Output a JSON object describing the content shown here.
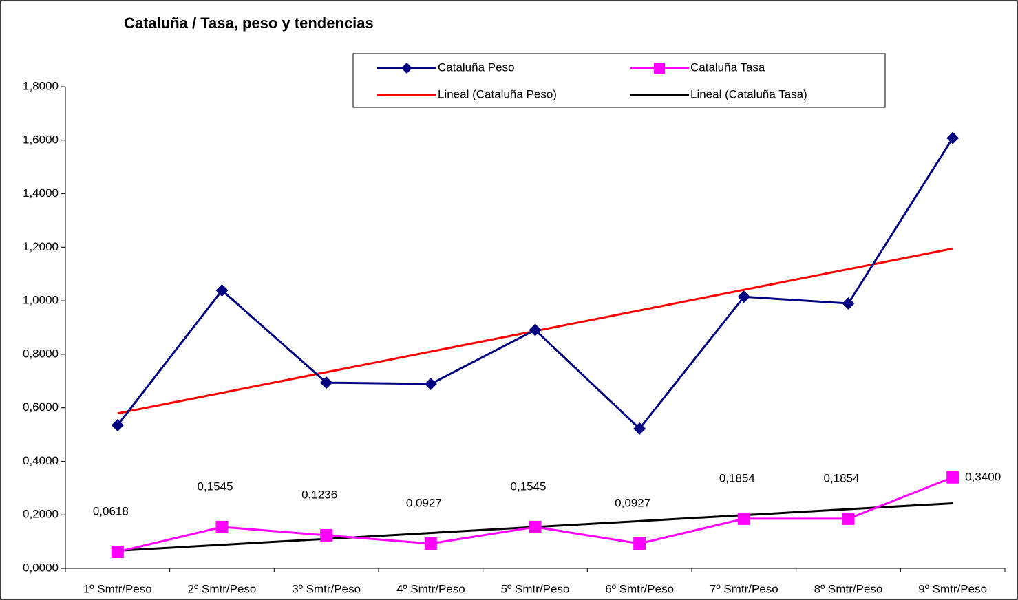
{
  "chart_data": {
    "type": "line",
    "title": "Cataluña  / Tasa, peso y tendencias",
    "categories": [
      "1º Smtr/Peso",
      "2º Smtr/Peso",
      "3º Smtr/Peso",
      "4º Smtr/Peso",
      "5º Smtr/Peso",
      "6º Smtr/Peso",
      "7º Smtr/Peso",
      "8º Smtr/Peso",
      "9º Smtr/Peso"
    ],
    "series": [
      {
        "name": "Cataluña Peso",
        "color": "#000080",
        "marker": "diamond",
        "values": [
          0.535,
          1.039,
          0.694,
          0.689,
          0.891,
          0.522,
          1.015,
          0.99,
          1.608
        ],
        "trendline": {
          "name": "Lineal (Cataluña Peso)",
          "color": "#ff0000"
        }
      },
      {
        "name": "Cataluña Tasa",
        "color": "#ff00ff",
        "marker": "square",
        "values": [
          0.0618,
          0.1545,
          0.1236,
          0.0927,
          0.1545,
          0.0927,
          0.1854,
          0.1854,
          0.34
        ],
        "value_labels": [
          "0,0618",
          "0,1545",
          "0,1236",
          "0,0927",
          "0,1545",
          "0,0927",
          "0,1854",
          "0,1854",
          "0,3400"
        ],
        "trendline": {
          "name": "Lineal (Cataluña Tasa)",
          "color": "#000000"
        }
      }
    ],
    "ylim": [
      0,
      1.8
    ],
    "yticks": [
      {
        "value": 0,
        "label": "0,0000"
      },
      {
        "value": 0.2,
        "label": "0,2000"
      },
      {
        "value": 0.4,
        "label": "0,4000"
      },
      {
        "value": 0.6,
        "label": "0,6000"
      },
      {
        "value": 0.8,
        "label": "0,8000"
      },
      {
        "value": 1,
        "label": "1,0000"
      },
      {
        "value": 1.2,
        "label": "1,2000"
      },
      {
        "value": 1.4,
        "label": "1,4000"
      },
      {
        "value": 1.6,
        "label": "1,6000"
      },
      {
        "value": 1.8,
        "label": "1,8000"
      }
    ],
    "grid": false
  }
}
